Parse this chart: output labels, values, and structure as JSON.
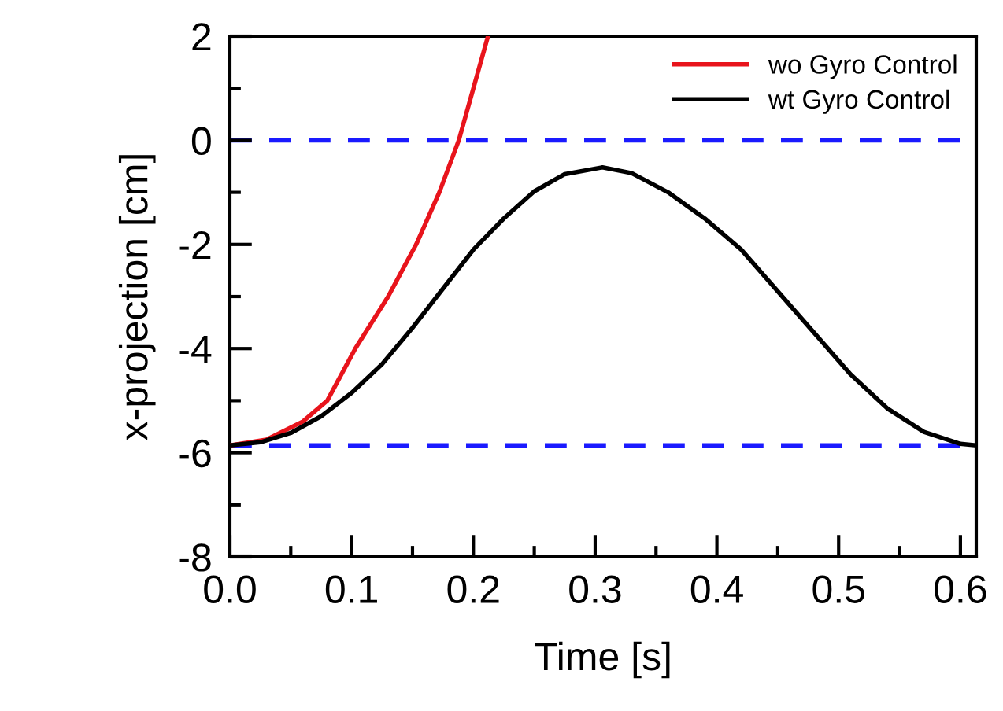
{
  "chart_data": {
    "type": "line",
    "xlabel": "Time [s]",
    "ylabel": "x-projection [cm]",
    "xlim": [
      0,
      0.613
    ],
    "xticks": [
      {
        "value": 0,
        "label": "0.0"
      },
      0.1,
      0.2,
      0.3,
      0.4,
      0.5,
      0.6
    ],
    "ylim": [
      -8,
      2
    ],
    "yticks": [
      -8,
      -6,
      -4,
      -2,
      0,
      2
    ],
    "grid": false,
    "legend": "top right",
    "line_style": "solid",
    "marker": "none",
    "ref_lines": [
      {
        "axis": "y",
        "value": 0,
        "color": "#1a1aff",
        "line_style": "dashed"
      },
      {
        "axis": "y",
        "value": -5.86,
        "color": "#1a1aff",
        "line_style": "dashed"
      }
    ],
    "series": [
      {
        "name": "wo Gyro Control",
        "color": "#e8141c",
        "x": [
          0,
          0.03,
          0.06,
          0.08,
          0.103,
          0.13,
          0.153,
          0.172,
          0.188,
          0.2,
          0.212
        ],
        "values": [
          -5.86,
          -5.75,
          -5.4,
          -5.0,
          -4.0,
          -3.0,
          -2.0,
          -1.0,
          0,
          1.0,
          2.0
        ]
      },
      {
        "name": "wt Gyro Control",
        "color": "#000000",
        "x": [
          0,
          0.025,
          0.05,
          0.075,
          0.1,
          0.125,
          0.15,
          0.175,
          0.2,
          0.225,
          0.25,
          0.275,
          0.306,
          0.33,
          0.36,
          0.39,
          0.42,
          0.45,
          0.48,
          0.51,
          0.54,
          0.57,
          0.6,
          0.613
        ],
        "values": [
          -5.86,
          -5.8,
          -5.62,
          -5.3,
          -4.85,
          -4.3,
          -3.6,
          -2.85,
          -2.1,
          -1.5,
          -0.98,
          -0.65,
          -0.52,
          -0.63,
          -1.0,
          -1.5,
          -2.1,
          -2.9,
          -3.7,
          -4.5,
          -5.15,
          -5.6,
          -5.83,
          -5.86
        ]
      }
    ]
  }
}
